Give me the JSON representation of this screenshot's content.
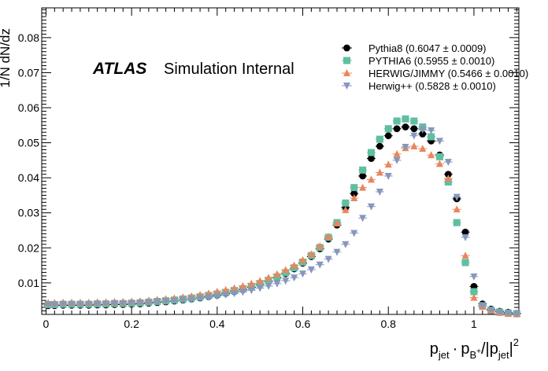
{
  "chart_data": {
    "type": "scatter",
    "ylabel": "1/N dN/dz",
    "xlabel_parts": {
      "p1": "p",
      "sub_jet": "jet",
      "dot": "·",
      "p2": "p",
      "sub_b": "B",
      "sup_plus": "+",
      "slash": "/|p",
      "close": "|",
      "sup_2": "2"
    },
    "annotation": {
      "brand": "ATLAS",
      "text": "Simulation Internal"
    },
    "xlim": [
      -0.01,
      1.105
    ],
    "ylim": [
      0.001,
      0.0885
    ],
    "x_ticks": [
      {
        "v": 0,
        "label": "0"
      },
      {
        "v": 0.2,
        "label": "0.2"
      },
      {
        "v": 0.4,
        "label": "0.4"
      },
      {
        "v": 0.6,
        "label": "0.6"
      },
      {
        "v": 0.8,
        "label": "0.8"
      },
      {
        "v": 1.0,
        "label": "1"
      }
    ],
    "y_ticks": [
      {
        "v": 0.01,
        "label": "0.01"
      },
      {
        "v": 0.02,
        "label": "0.02"
      },
      {
        "v": 0.03,
        "label": "0.03"
      },
      {
        "v": 0.04,
        "label": "0.04"
      },
      {
        "v": 0.05,
        "label": "0.05"
      },
      {
        "v": 0.06,
        "label": "0.06"
      },
      {
        "v": 0.07,
        "label": "0.07"
      },
      {
        "v": 0.08,
        "label": "0.08"
      }
    ],
    "x": [
      0.005,
      0.02,
      0.04,
      0.06,
      0.08,
      0.1,
      0.12,
      0.14,
      0.16,
      0.18,
      0.2,
      0.22,
      0.24,
      0.26,
      0.28,
      0.3,
      0.32,
      0.34,
      0.36,
      0.38,
      0.4,
      0.42,
      0.44,
      0.46,
      0.48,
      0.5,
      0.52,
      0.54,
      0.56,
      0.58,
      0.6,
      0.62,
      0.64,
      0.66,
      0.68,
      0.7,
      0.72,
      0.74,
      0.76,
      0.78,
      0.8,
      0.82,
      0.84,
      0.86,
      0.88,
      0.9,
      0.92,
      0.94,
      0.96,
      0.98,
      1.0,
      1.02,
      1.04,
      1.06,
      1.08,
      1.1
    ],
    "series": [
      {
        "name": "Pythia8 (0.6047 ± 0.0009)",
        "marker": "circle",
        "color": "#000000",
        "y": [
          0.0035,
          0.0035,
          0.0036,
          0.0036,
          0.0036,
          0.0036,
          0.0037,
          0.0037,
          0.0038,
          0.0038,
          0.0039,
          0.004,
          0.0042,
          0.0044,
          0.0046,
          0.0048,
          0.0051,
          0.0054,
          0.0057,
          0.0061,
          0.0065,
          0.007,
          0.0075,
          0.008,
          0.0087,
          0.0095,
          0.0104,
          0.0114,
          0.0126,
          0.014,
          0.0156,
          0.0175,
          0.0197,
          0.0225,
          0.0265,
          0.0315,
          0.0355,
          0.0405,
          0.0455,
          0.049,
          0.052,
          0.054,
          0.0545,
          0.054,
          0.0525,
          0.0505,
          0.0465,
          0.041,
          0.034,
          0.0245,
          0.009,
          0.004,
          0.0025,
          0.0019,
          0.0016,
          0.0013
        ]
      },
      {
        "name": "PYTHIA6 (0.5955 ± 0.0010)",
        "marker": "square",
        "color": "#5fbfa3",
        "y": [
          0.0038,
          0.0038,
          0.0039,
          0.0039,
          0.0039,
          0.0039,
          0.004,
          0.004,
          0.0041,
          0.0041,
          0.0042,
          0.0043,
          0.0045,
          0.0047,
          0.0049,
          0.0051,
          0.0054,
          0.0057,
          0.006,
          0.0064,
          0.0068,
          0.0073,
          0.0078,
          0.0083,
          0.009,
          0.0098,
          0.0107,
          0.0117,
          0.0129,
          0.0143,
          0.0159,
          0.0178,
          0.0201,
          0.023,
          0.0272,
          0.0328,
          0.0372,
          0.0422,
          0.0472,
          0.051,
          0.054,
          0.0562,
          0.0568,
          0.0562,
          0.0545,
          0.0517,
          0.046,
          0.0388,
          0.0272,
          0.0158,
          0.0075,
          0.0035,
          0.0022,
          0.0017,
          0.0014,
          0.0012
        ]
      },
      {
        "name": "HERWIG/JIMMY (0.5466 ± 0.0010)",
        "marker": "triangle-up",
        "color": "#e8875c",
        "y": [
          0.0043,
          0.0043,
          0.0044,
          0.0044,
          0.0044,
          0.0044,
          0.0045,
          0.0045,
          0.0046,
          0.0046,
          0.0047,
          0.0048,
          0.005,
          0.0052,
          0.0054,
          0.0056,
          0.0059,
          0.0062,
          0.0066,
          0.007,
          0.0075,
          0.008,
          0.0085,
          0.0091,
          0.0098,
          0.0106,
          0.0115,
          0.0125,
          0.0137,
          0.015,
          0.0165,
          0.0182,
          0.0205,
          0.0232,
          0.027,
          0.0308,
          0.0342,
          0.0372,
          0.0395,
          0.0415,
          0.0438,
          0.0468,
          0.0485,
          0.049,
          0.0483,
          0.0465,
          0.044,
          0.0398,
          0.031,
          0.0178,
          0.0058,
          0.0032,
          0.002,
          0.0015,
          0.0012,
          0.0011
        ]
      },
      {
        "name": "Herwig++ (0.5828 ± 0.0010)",
        "marker": "triangle-down",
        "color": "#8797bd",
        "y": [
          0.0038,
          0.0038,
          0.0039,
          0.0039,
          0.0039,
          0.0039,
          0.004,
          0.004,
          0.0041,
          0.0041,
          0.0042,
          0.0043,
          0.0044,
          0.0046,
          0.0047,
          0.0049,
          0.0051,
          0.0053,
          0.0056,
          0.0059,
          0.0062,
          0.0066,
          0.007,
          0.0074,
          0.0079,
          0.0085,
          0.0091,
          0.0098,
          0.0106,
          0.0115,
          0.0126,
          0.0138,
          0.0152,
          0.0168,
          0.0188,
          0.021,
          0.0242,
          0.0285,
          0.0318,
          0.036,
          0.0405,
          0.045,
          0.0488,
          0.052,
          0.0538,
          0.0535,
          0.0505,
          0.0445,
          0.0345,
          0.023,
          0.0118,
          0.0035,
          0.0022,
          0.0016,
          0.0013,
          0.0011
        ]
      }
    ],
    "legend": "top-right",
    "grid": false
  }
}
